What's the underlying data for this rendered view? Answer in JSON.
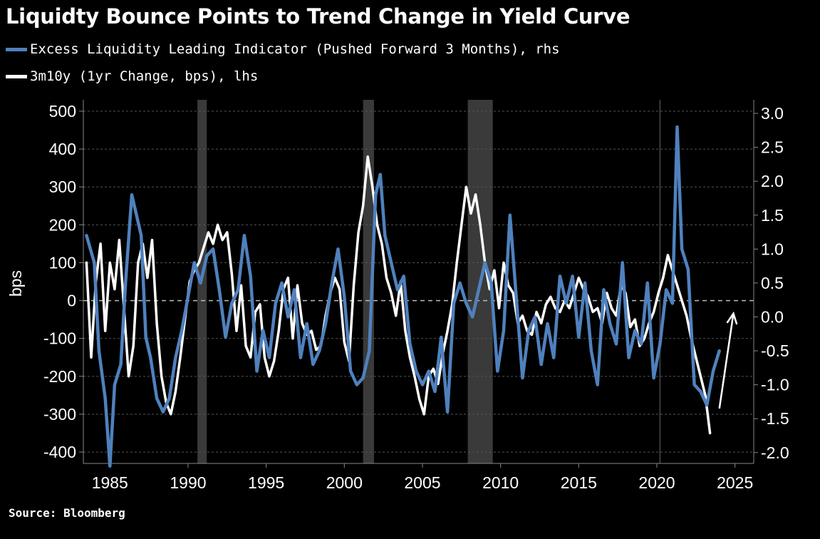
{
  "title": "Liquidty Bounce Points to Trend Change in Yield Curve",
  "source": "Source: Bloomberg",
  "chart_data": {
    "type": "line",
    "title": "Liquidty Bounce Points to Trend Change in Yield Curve",
    "ylabel": "bps",
    "x_range": [
      1983.3,
      2026.2
    ],
    "ylim_left": [
      -430,
      530
    ],
    "ylim_right": [
      -2.16,
      3.2
    ],
    "x_ticks": [
      "1985",
      "1990",
      "1995",
      "2000",
      "2005",
      "2010",
      "2015",
      "2020",
      "2025"
    ],
    "y_ticks_left": [
      "500",
      "400",
      "300",
      "200",
      "100",
      "0",
      "-100",
      "-200",
      "-300",
      "-400"
    ],
    "y_ticks_right": [
      "3.0",
      "2.5",
      "2.0",
      "1.5",
      "1.0",
      "0.5",
      "0.0",
      "-0.5",
      "-1.0",
      "-1.5",
      "-2.0"
    ],
    "legend_position": "top-left",
    "zero_line": "dashed",
    "recession_shading": [
      [
        1990.6,
        1991.2
      ],
      [
        2001.2,
        2001.9
      ],
      [
        2007.9,
        2009.5
      ]
    ],
    "annotation": "up-arrow",
    "series": [
      {
        "name": "Excess Liquidity Leading Indicator (Pushed Forward 3 Months), rhs",
        "axis": "right",
        "color": "#4f81bd",
        "x": [
          1983.5,
          1984.0,
          1984.3,
          1984.7,
          1985.0,
          1985.3,
          1985.7,
          1986.0,
          1986.4,
          1986.7,
          1987.0,
          1987.3,
          1987.6,
          1988.0,
          1988.4,
          1988.8,
          1989.2,
          1989.6,
          1990.0,
          1990.4,
          1990.8,
          1991.2,
          1991.6,
          1992.0,
          1992.4,
          1992.8,
          1993.2,
          1993.6,
          1994.0,
          1994.4,
          1994.8,
          1995.2,
          1995.6,
          1996.0,
          1996.4,
          1996.8,
          1997.2,
          1997.6,
          1998.0,
          1998.4,
          1998.8,
          1999.2,
          1999.6,
          2000.0,
          2000.4,
          2000.8,
          2001.2,
          2001.6,
          2002.0,
          2002.3,
          2002.6,
          2003.0,
          2003.4,
          2003.8,
          2004.2,
          2004.6,
          2005.0,
          2005.4,
          2005.8,
          2006.2,
          2006.6,
          2007.0,
          2007.4,
          2007.8,
          2008.2,
          2008.6,
          2009.0,
          2009.4,
          2009.8,
          2010.2,
          2010.6,
          2011.0,
          2011.4,
          2011.8,
          2012.2,
          2012.6,
          2013.0,
          2013.4,
          2013.8,
          2014.2,
          2014.6,
          2015.0,
          2015.4,
          2015.8,
          2016.2,
          2016.6,
          2017.0,
          2017.4,
          2017.8,
          2018.2,
          2018.6,
          2019.0,
          2019.4,
          2019.8,
          2020.2,
          2020.6,
          2021.0,
          2021.3,
          2021.6,
          2022.0,
          2022.4,
          2022.8,
          2023.2,
          2023.6,
          2024.0
        ],
        "values": [
          1.2,
          0.8,
          -0.5,
          -1.2,
          -2.2,
          -1.0,
          -0.7,
          0.5,
          1.8,
          1.5,
          1.2,
          -0.3,
          -0.6,
          -1.2,
          -1.4,
          -1.2,
          -0.6,
          -0.2,
          0.3,
          0.8,
          0.5,
          0.9,
          1.0,
          0.4,
          -0.3,
          0.2,
          0.4,
          1.2,
          0.6,
          -0.8,
          -0.2,
          -0.6,
          0.2,
          0.5,
          0.0,
          0.4,
          -0.6,
          -0.1,
          -0.7,
          -0.5,
          -0.1,
          0.5,
          1.0,
          0.3,
          -0.8,
          -1.0,
          -0.9,
          -0.5,
          1.8,
          2.1,
          1.2,
          0.8,
          0.4,
          0.6,
          -0.4,
          -0.8,
          -1.0,
          -0.8,
          -1.1,
          -0.3,
          -1.4,
          0.2,
          0.5,
          0.2,
          0.0,
          0.4,
          0.8,
          0.5,
          -0.8,
          -0.2,
          1.5,
          0.3,
          -0.9,
          -0.2,
          0.0,
          -0.7,
          -0.1,
          -0.6,
          0.6,
          0.2,
          0.6,
          -0.3,
          0.5,
          -0.5,
          -1.0,
          0.4,
          -0.1,
          -0.4,
          0.8,
          -0.6,
          -0.2,
          -0.4,
          0.5,
          -0.9,
          -0.4,
          0.4,
          0.2,
          2.8,
          1.0,
          0.7,
          -1.0,
          -1.1,
          -1.3,
          -0.8,
          -0.5
        ]
      },
      {
        "name": "3m10y (1yr Change, bps), lhs",
        "axis": "left",
        "color": "#ffffff",
        "x": [
          1983.5,
          1983.8,
          1984.1,
          1984.4,
          1984.7,
          1985.0,
          1985.3,
          1985.6,
          1985.9,
          1986.2,
          1986.5,
          1986.8,
          1987.1,
          1987.4,
          1987.7,
          1988.0,
          1988.3,
          1988.6,
          1988.9,
          1989.2,
          1989.5,
          1989.8,
          1990.1,
          1990.4,
          1990.7,
          1991.0,
          1991.3,
          1991.6,
          1991.9,
          1992.2,
          1992.5,
          1992.8,
          1993.1,
          1993.4,
          1993.7,
          1994.0,
          1994.3,
          1994.6,
          1994.9,
          1995.2,
          1995.5,
          1995.8,
          1996.1,
          1996.4,
          1996.7,
          1997.0,
          1997.3,
          1997.6,
          1997.9,
          1998.2,
          1998.5,
          1998.8,
          1999.1,
          1999.4,
          1999.7,
          2000.0,
          2000.3,
          2000.6,
          2000.9,
          2001.2,
          2001.5,
          2001.8,
          2002.1,
          2002.4,
          2002.7,
          2003.0,
          2003.3,
          2003.6,
          2003.9,
          2004.2,
          2004.5,
          2004.8,
          2005.1,
          2005.4,
          2005.7,
          2006.0,
          2006.3,
          2006.6,
          2006.9,
          2007.2,
          2007.5,
          2007.8,
          2008.1,
          2008.4,
          2008.7,
          2009.0,
          2009.3,
          2009.6,
          2009.9,
          2010.2,
          2010.5,
          2010.8,
          2011.1,
          2011.4,
          2011.7,
          2012.0,
          2012.3,
          2012.6,
          2012.9,
          2013.2,
          2013.5,
          2013.8,
          2014.1,
          2014.4,
          2014.7,
          2015.0,
          2015.3,
          2015.6,
          2015.9,
          2016.2,
          2016.5,
          2016.8,
          2017.1,
          2017.4,
          2017.7,
          2018.0,
          2018.3,
          2018.6,
          2018.9,
          2019.2,
          2019.5,
          2019.8,
          2020.1,
          2020.4,
          2020.7,
          2021.0,
          2021.3,
          2021.6,
          2021.9,
          2022.2,
          2022.5,
          2022.8,
          2023.1,
          2023.4
        ],
        "values": [
          100,
          -150,
          50,
          150,
          -80,
          100,
          30,
          160,
          -20,
          -200,
          -120,
          100,
          150,
          60,
          160,
          -60,
          -200,
          -270,
          -300,
          -240,
          -150,
          -50,
          50,
          80,
          100,
          140,
          180,
          150,
          200,
          160,
          180,
          70,
          -80,
          40,
          -120,
          -150,
          -30,
          -10,
          -150,
          -200,
          -160,
          -80,
          30,
          60,
          -100,
          40,
          -60,
          -90,
          -80,
          -130,
          -120,
          -40,
          20,
          60,
          30,
          -110,
          -160,
          40,
          180,
          250,
          380,
          300,
          200,
          150,
          60,
          20,
          -40,
          50,
          -80,
          -150,
          -200,
          -260,
          -300,
          -200,
          -180,
          -220,
          -140,
          -80,
          -10,
          100,
          200,
          300,
          230,
          280,
          200,
          100,
          30,
          80,
          -20,
          100,
          40,
          20,
          -60,
          -40,
          -80,
          -90,
          -30,
          -60,
          -10,
          10,
          -20,
          -30,
          0,
          -20,
          20,
          60,
          30,
          10,
          -30,
          -20,
          -60,
          20,
          -20,
          -40,
          40,
          20,
          -70,
          -50,
          -120,
          -100,
          -60,
          -30,
          20,
          60,
          120,
          80,
          40,
          0,
          -40,
          -100,
          -150,
          -200,
          -250,
          -350
        ]
      }
    ]
  }
}
